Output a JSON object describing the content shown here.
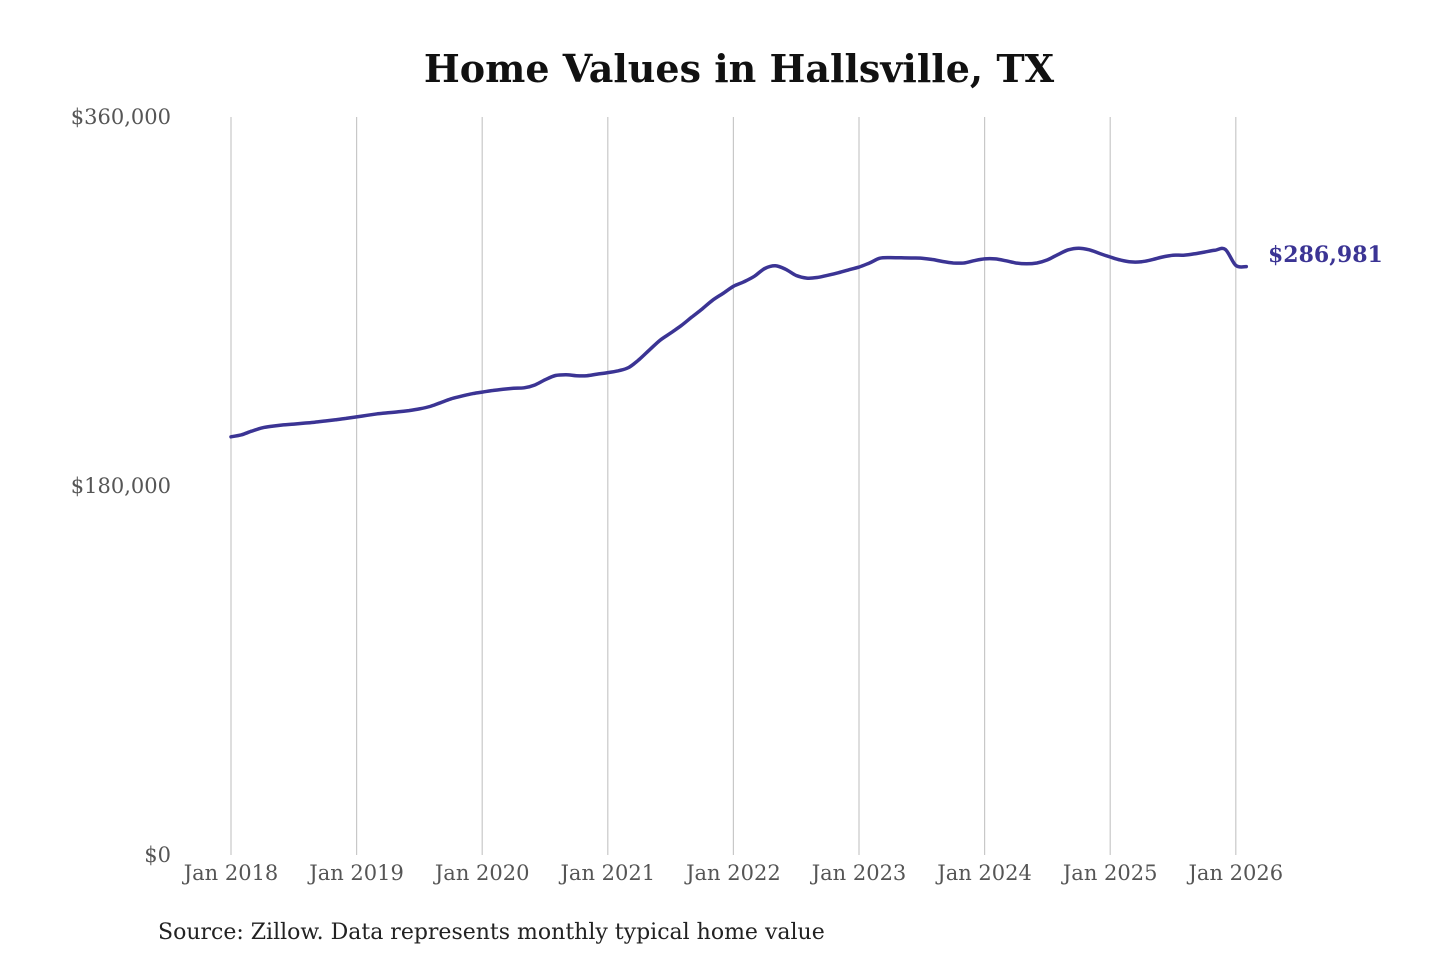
{
  "chart_data": {
    "type": "line",
    "title": "Home Values in Hallsville, TX",
    "source": "Source: Zillow. Data represents monthly typical home value",
    "xlabel": "",
    "ylabel": "",
    "ylim": [
      0,
      360000
    ],
    "y_ticks": [
      {
        "value": 0,
        "label": "$0"
      },
      {
        "value": 180000,
        "label": "$180,000"
      },
      {
        "value": 360000,
        "label": "$360,000"
      }
    ],
    "x_ticks": [
      {
        "value": "2018-01",
        "label": "Jan 2018"
      },
      {
        "value": "2019-01",
        "label": "Jan 2019"
      },
      {
        "value": "2020-01",
        "label": "Jan 2020"
      },
      {
        "value": "2021-01",
        "label": "Jan 2021"
      },
      {
        "value": "2022-01",
        "label": "Jan 2022"
      },
      {
        "value": "2023-01",
        "label": "Jan 2023"
      },
      {
        "value": "2024-01",
        "label": "Jan 2024"
      },
      {
        "value": "2025-01",
        "label": "Jan 2025"
      },
      {
        "value": "2026-01",
        "label": "Jan 2026"
      }
    ],
    "grid": "vertical",
    "line_color": "#3b3494",
    "end_label": "$286,981",
    "series": [
      {
        "x": [
          "2018-01",
          "2018-02",
          "2018-03",
          "2018-04",
          "2018-05",
          "2018-06",
          "2018-07",
          "2018-08",
          "2018-09",
          "2018-10",
          "2018-11",
          "2018-12",
          "2019-01",
          "2019-02",
          "2019-03",
          "2019-04",
          "2019-05",
          "2019-06",
          "2019-07",
          "2019-08",
          "2019-09",
          "2019-10",
          "2019-11",
          "2019-12",
          "2020-01",
          "2020-02",
          "2020-03",
          "2020-04",
          "2020-05",
          "2020-06",
          "2020-07",
          "2020-08",
          "2020-09",
          "2020-10",
          "2020-11",
          "2020-12",
          "2021-01",
          "2021-02",
          "2021-03",
          "2021-04",
          "2021-05",
          "2021-06",
          "2021-07",
          "2021-08",
          "2021-09",
          "2021-10",
          "2021-11",
          "2021-12",
          "2022-01",
          "2022-02",
          "2022-03",
          "2022-04",
          "2022-05",
          "2022-06",
          "2022-07",
          "2022-08",
          "2022-09",
          "2022-10",
          "2022-11",
          "2022-12",
          "2023-01",
          "2023-02",
          "2023-03",
          "2023-04",
          "2023-05",
          "2023-06",
          "2023-07",
          "2023-08",
          "2023-09",
          "2023-10",
          "2023-11",
          "2023-12",
          "2024-01",
          "2024-02",
          "2024-03",
          "2024-04",
          "2024-05",
          "2024-06",
          "2024-07",
          "2024-08",
          "2024-09",
          "2024-10",
          "2024-11",
          "2024-12",
          "2025-01",
          "2025-02",
          "2025-03",
          "2025-04",
          "2025-05",
          "2025-06",
          "2025-07",
          "2025-08",
          "2025-09",
          "2025-10",
          "2025-11",
          "2025-12",
          "2026-01",
          "2026-02"
        ],
        "y": [
          204000,
          205000,
          206800,
          208400,
          209200,
          209800,
          210200,
          210700,
          211100,
          211700,
          212300,
          213000,
          213700,
          214500,
          215200,
          215700,
          216200,
          216800,
          217600,
          218800,
          220600,
          222500,
          223800,
          225000,
          225800,
          226600,
          227200,
          227700,
          227900,
          229200,
          231800,
          233900,
          234300,
          233800,
          233800,
          234600,
          235300,
          236200,
          237800,
          241700,
          246500,
          251100,
          254600,
          258200,
          262300,
          266300,
          270600,
          273900,
          277400,
          279600,
          282300,
          286100,
          287400,
          285700,
          282700,
          281400,
          281700,
          282800,
          284000,
          285400,
          286800,
          288800,
          291100,
          291400,
          291300,
          291200,
          291100,
          290500,
          289500,
          288800,
          288800,
          289900,
          290800,
          290800,
          289900,
          288800,
          288400,
          288800,
          290300,
          292900,
          295200,
          296000,
          295200,
          293400,
          291700,
          290200,
          289300,
          289400,
          290400,
          291700,
          292600,
          292600,
          293200,
          294100,
          295000,
          295400,
          287600,
          287000
        ],
        "name": ""
      }
    ]
  }
}
